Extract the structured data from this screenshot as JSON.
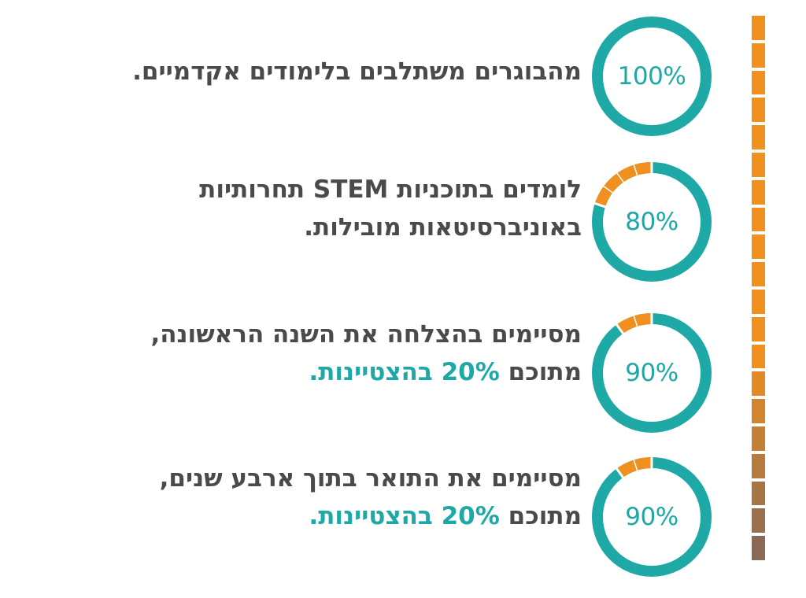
{
  "colors": {
    "teal": "#1ea8a6",
    "orange": "#f0901e",
    "text": "#4a4a4a",
    "bar_top": "#f0901e",
    "bar_bottom": "#8a6a55"
  },
  "chart_data": {
    "type": "donut",
    "items": [
      {
        "value": 100,
        "label": "100%",
        "lines": [
          {
            "text": "מהבוגרים משתלבים בלימודים אקדמיים.",
            "highlight": ""
          }
        ]
      },
      {
        "value": 80,
        "label": "80%",
        "lines": [
          {
            "text": "לומדים בתוכניות STEM תחרותיות",
            "highlight": ""
          },
          {
            "text": "באוניברסיטאות מובילות.",
            "highlight": ""
          }
        ]
      },
      {
        "value": 90,
        "label": "90%",
        "lines": [
          {
            "text": "מסיימים בהצלחה את השנה הראשונה,",
            "highlight": ""
          },
          {
            "text": "מתוכם ",
            "highlight": "20% בהצטיינות."
          }
        ]
      },
      {
        "value": 90,
        "label": "90%",
        "lines": [
          {
            "text": "מסיימים את התואר בתוך ארבע שנים,",
            "highlight": ""
          },
          {
            "text": "מתוכם ",
            "highlight": "20% בהצטיינות."
          }
        ]
      }
    ]
  }
}
